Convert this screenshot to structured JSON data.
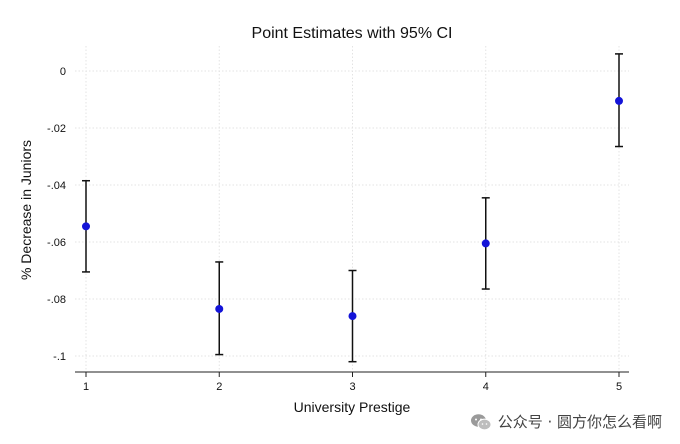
{
  "chart_data": {
    "type": "scatter",
    "title": "Point Estimates with 95% CI",
    "xlabel": "University Prestige",
    "ylabel": "% Decrease in Juniors",
    "x": [
      1,
      2,
      3,
      4,
      5
    ],
    "y": [
      -0.0545,
      -0.0835,
      -0.086,
      -0.0605,
      -0.0105
    ],
    "ci_low": [
      -0.0705,
      -0.0995,
      -0.102,
      -0.0765,
      -0.0265
    ],
    "ci_high": [
      -0.0385,
      -0.067,
      -0.07,
      -0.0445,
      0.006
    ],
    "xticks": [
      "1",
      "2",
      "3",
      "4",
      "5"
    ],
    "yticks": [
      {
        "value": 0,
        "label": "0"
      },
      {
        "value": -0.02,
        "label": "-.02"
      },
      {
        "value": -0.04,
        "label": "-.04"
      },
      {
        "value": -0.06,
        "label": "-.06"
      },
      {
        "value": -0.08,
        "label": "-.08"
      },
      {
        "value": -0.1,
        "label": "-.1"
      }
    ],
    "xlim": [
      1,
      5
    ],
    "ylim": [
      -0.1,
      0
    ],
    "grid": true,
    "point_color": "#1414d8",
    "errorbar_color": "#111111"
  },
  "watermark": {
    "text": "公众号 · 圆方你怎么看啊",
    "icon": "wechat-icon"
  }
}
